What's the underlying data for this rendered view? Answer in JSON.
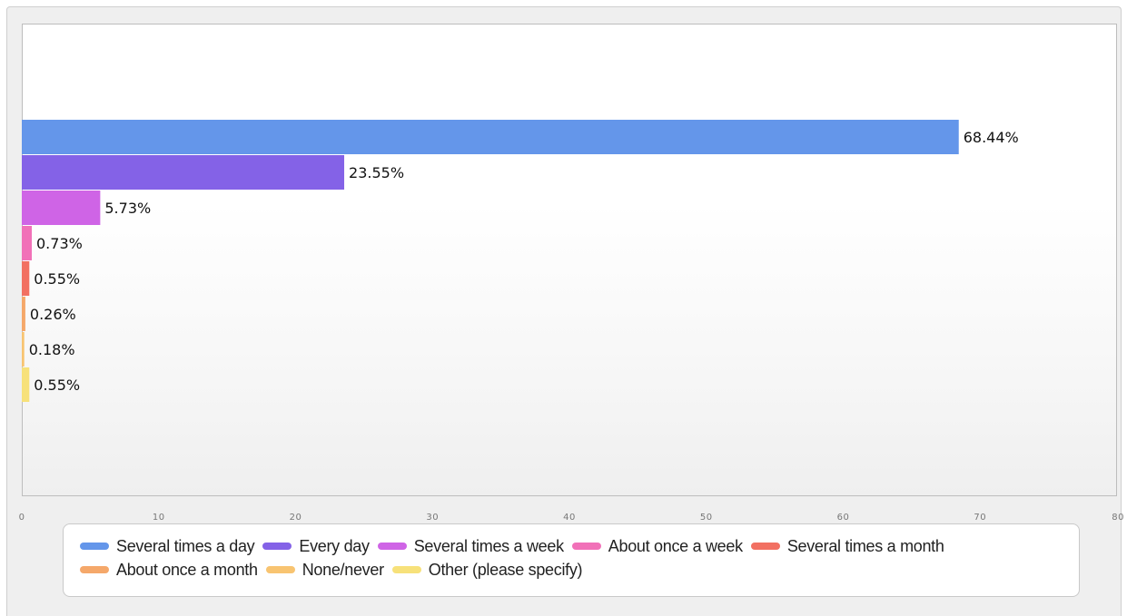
{
  "chart_data": {
    "type": "bar",
    "orientation": "horizontal",
    "title": "",
    "xlabel": "",
    "ylabel": "",
    "xlim": [
      0,
      80
    ],
    "x_ticks": [
      0,
      10,
      20,
      30,
      40,
      50,
      60,
      70,
      80
    ],
    "grid": false,
    "legend_position": "bottom",
    "categories": [
      "Several times a day",
      "Every day",
      "Several times a week",
      "About once a week",
      "Several times a month",
      "About once a month",
      "None/never",
      "Other (please specify)"
    ],
    "values": [
      68.44,
      23.55,
      5.73,
      0.73,
      0.55,
      0.26,
      0.18,
      0.55
    ],
    "data_labels": [
      "68.44%",
      "23.55%",
      "5.73%",
      "0.73%",
      "0.55%",
      "0.26%",
      "0.18%",
      "0.55%"
    ],
    "colors": [
      "#6496ea",
      "#8462e7",
      "#cf64e6",
      "#f171b8",
      "#f27062",
      "#f5a86a",
      "#f8c471",
      "#f7e17a"
    ]
  }
}
